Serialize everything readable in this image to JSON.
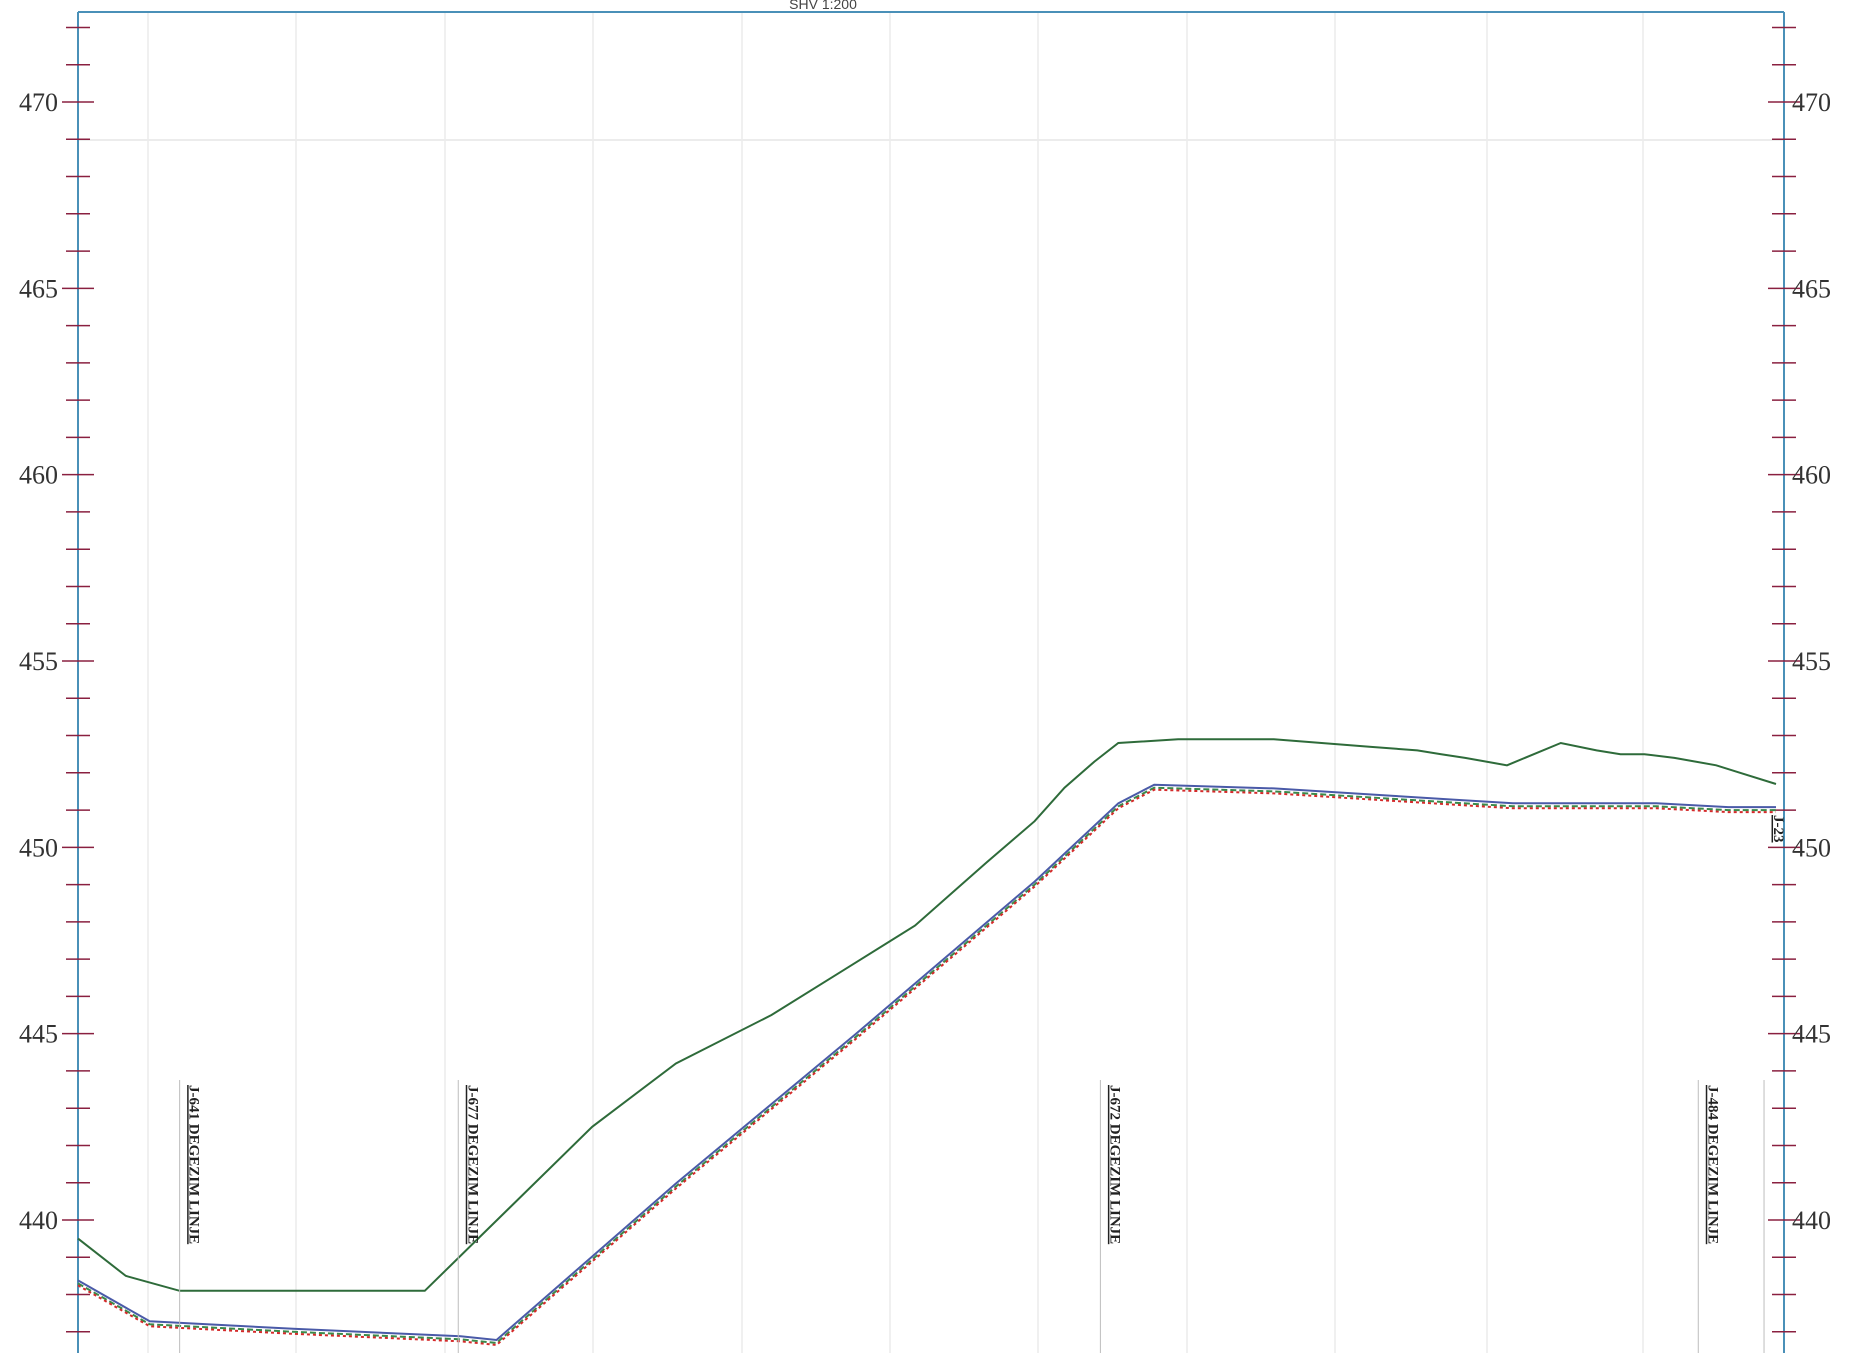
{
  "scale_label": "SHV 1:200",
  "colors": {
    "frame": "#4a90b8",
    "tick_marks": "#8a2040",
    "grid": "#e2e2e2",
    "terrain_line": "#2e6b3a",
    "design_line_red": "#d42a2a",
    "design_line_green": "#3a8a4a",
    "design_line_blue": "#4a5aa8"
  },
  "chart_data": {
    "type": "line",
    "title": "",
    "xlabel": "",
    "ylabel": "",
    "ylim": [
      436.7,
      472.5
    ],
    "y_ticks": [
      440,
      445,
      450,
      455,
      460,
      465,
      470
    ],
    "y_tick_labels": [
      "440",
      "445",
      "450",
      "455",
      "460",
      "465",
      "470"
    ],
    "series": [
      {
        "id": "terrain",
        "color": "#2e6b3a",
        "x": [
          0,
          40,
          85,
          125,
          200,
          260,
          290,
          430,
          500,
          580,
          640,
          700,
          760,
          800,
          825,
          850,
          870,
          920,
          1000,
          1080,
          1120,
          1140,
          1160,
          1195,
          1240,
          1270,
          1290,
          1310,
          1335,
          1370,
          1390,
          1420
        ],
        "y": [
          439.5,
          438.5,
          438.1,
          438.1,
          438.1,
          438.1,
          438.1,
          442.5,
          444.2,
          445.5,
          446.7,
          447.9,
          449.6,
          450.7,
          451.6,
          452.3,
          452.8,
          452.9,
          452.9,
          452.7,
          452.6,
          452.5,
          452.4,
          452.2,
          452.8,
          452.6,
          452.5,
          452.5,
          452.4,
          452.2,
          452.0,
          451.7
        ]
      },
      {
        "id": "design",
        "color": "#d42a2a",
        "x": [
          0,
          60,
          180,
          320,
          350,
          500,
          650,
          800,
          870,
          900,
          1000,
          1100,
          1150,
          1200,
          1270,
          1320,
          1380,
          1420
        ],
        "y": [
          438.3,
          437.2,
          437.0,
          436.8,
          436.7,
          440.9,
          444.9,
          449.0,
          451.1,
          451.6,
          451.5,
          451.3,
          451.2,
          451.1,
          451.1,
          451.1,
          451.0,
          451.0
        ]
      }
    ],
    "vertical_markers": [
      {
        "x": 85,
        "label": "J-641 DEGEZIM LINJE"
      },
      {
        "x": 318,
        "label": "J-677 DEGEZIM LINJE"
      },
      {
        "x": 855,
        "label": "J-672 DEGEZIM LINJE"
      },
      {
        "x": 1355,
        "label": "J-484 DEGEZIM LINJE"
      },
      {
        "x": 1410,
        "label": "J-23"
      }
    ]
  }
}
